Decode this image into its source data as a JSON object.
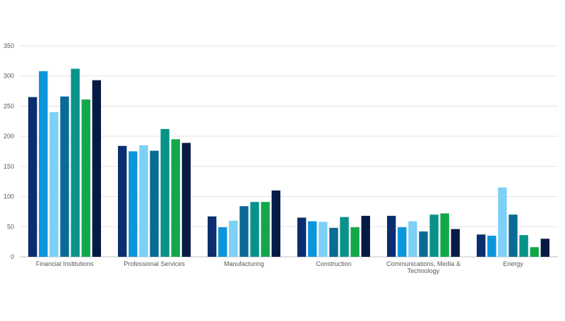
{
  "chart_data": {
    "type": "bar",
    "title": "",
    "xlabel": "",
    "ylabel": "",
    "ylim": [
      0,
      350
    ],
    "yticks": [
      0,
      50,
      100,
      150,
      200,
      250,
      300,
      350
    ],
    "grid": true,
    "legend": "none",
    "categories": [
      "Financial Institutions",
      "Professional Services",
      "Manufacturing",
      "Construction",
      "Communications, Media & Technology",
      "Energy"
    ],
    "series": [
      {
        "color": "#0a2e6e",
        "values": [
          265,
          184,
          67,
          65,
          68,
          37
        ]
      },
      {
        "color": "#0b95dc",
        "values": [
          308,
          175,
          49,
          59,
          49,
          35
        ]
      },
      {
        "color": "#7dd0f7",
        "values": [
          240,
          185,
          60,
          58,
          59,
          115
        ]
      },
      {
        "color": "#0a6b96",
        "values": [
          266,
          176,
          84,
          48,
          42,
          70
        ]
      },
      {
        "color": "#07938a",
        "values": [
          312,
          212,
          91,
          66,
          70,
          36
        ]
      },
      {
        "color": "#12a84a",
        "values": [
          261,
          195,
          91,
          49,
          72,
          16
        ]
      },
      {
        "color": "#061a46",
        "values": [
          293,
          189,
          110,
          68,
          46,
          30
        ]
      }
    ]
  }
}
